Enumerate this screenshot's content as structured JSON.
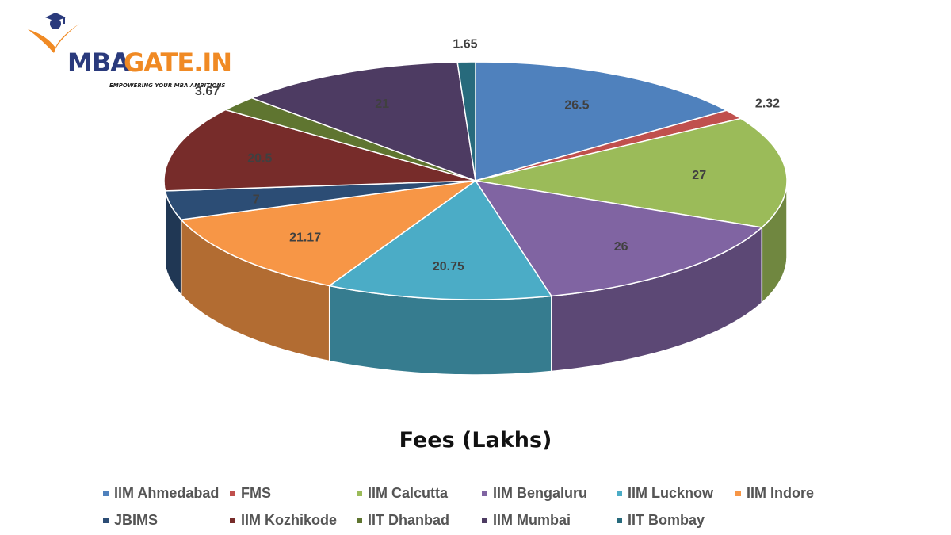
{
  "logo": {
    "brand_mba": "MBA",
    "brand_gate": "GATE.IN",
    "tagline": "EMPOWERING YOUR MBA AMBITIONS"
  },
  "chart_data": {
    "type": "pie",
    "title": "Fees (Lakhs)",
    "categories": [
      "IIM Ahmedabad",
      "FMS",
      "IIM Calcutta",
      "IIM Bengaluru",
      "IIM Lucknow",
      "IIM Indore",
      "JBIMS",
      "IIM Kozhikode",
      "IIT Dhanbad",
      "IIM Mumbai",
      "IIT Bombay"
    ],
    "values": [
      26.5,
      2.32,
      27,
      26,
      20.75,
      21.17,
      7,
      20.5,
      3.67,
      21,
      1.65
    ],
    "labels": [
      "26.5",
      "2.32",
      "27",
      "26",
      "20.75",
      "21.17",
      "7",
      "20.5",
      "3.67",
      "21",
      "1.65"
    ],
    "colors": [
      "#4f81bd",
      "#c0504d",
      "#9bbb59",
      "#8064a2",
      "#4bacc6",
      "#f79646",
      "#2c4d75",
      "#772c2a",
      "#5f7530",
      "#4d3b62",
      "#276a7c"
    ],
    "legend_position": "bottom",
    "style": "3d-pie"
  }
}
